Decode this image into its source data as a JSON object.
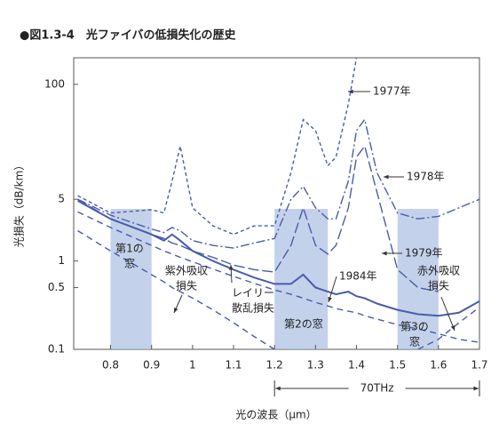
{
  "chart_data": {
    "type": "line",
    "title": "●図1.3-4　光ファイバの低損失化の歴史",
    "x_label": "光の波長（μm）",
    "y_label": "光損失（dB/km）",
    "y_log": true,
    "xlim": [
      0.71,
      1.7
    ],
    "ylim": [
      0.1,
      200
    ],
    "xticks": [
      0.8,
      0.9,
      1.0,
      1.1,
      1.2,
      1.3,
      1.4,
      1.5,
      1.6,
      1.7
    ],
    "yticks": [
      0.1,
      0.5,
      1,
      5,
      100
    ],
    "x": [
      0.72,
      0.8,
      0.9,
      0.93,
      0.95,
      0.97,
      1.0,
      1.05,
      1.1,
      1.15,
      1.2,
      1.24,
      1.27,
      1.3,
      1.33,
      1.35,
      1.38,
      1.4,
      1.42,
      1.45,
      1.5,
      1.55,
      1.6,
      1.65,
      1.7
    ],
    "series": [
      {
        "name": "1977年",
        "color": "#4a5cab",
        "dash": "4 3",
        "values": [
          5.5,
          3.5,
          3.8,
          3.5,
          8,
          20,
          4,
          2.5,
          2.0,
          2.5,
          2.5,
          10,
          40,
          30,
          12,
          15,
          60,
          200,
          null,
          null,
          null,
          null,
          null,
          null,
          null
        ]
      },
      {
        "name": "1978年",
        "color": "#4a5cab",
        "dash": "10 3 2 3",
        "values": [
          5,
          3.3,
          2.3,
          2.1,
          2.4,
          2.2,
          1.7,
          1.5,
          1.4,
          1.6,
          1.8,
          5,
          7,
          4,
          3,
          3,
          8,
          30,
          40,
          10,
          3.5,
          3,
          3.2,
          4,
          5
        ]
      },
      {
        "name": "1979年",
        "color": "#4a5cab",
        "dash": "12 4",
        "values": [
          5,
          3,
          2,
          1.8,
          1.6,
          1.5,
          1.3,
          1.1,
          0.9,
          0.8,
          0.75,
          1.5,
          4,
          1.5,
          1.2,
          1.5,
          4,
          15,
          20,
          6,
          0.8,
          0.5,
          0.45,
          null,
          null
        ]
      },
      {
        "name": "1984年",
        "color": "#4a5cab",
        "dash": "none",
        "values": [
          4.8,
          3,
          2,
          1.7,
          2,
          1.7,
          1.3,
          1.0,
          0.8,
          0.65,
          0.55,
          0.55,
          0.7,
          0.5,
          0.45,
          0.42,
          0.45,
          0.4,
          0.38,
          0.33,
          0.28,
          0.25,
          0.24,
          0.26,
          0.35
        ]
      },
      {
        "name": "レイリー散乱損失",
        "color": "#4a5cab",
        "dash": "7 5",
        "values": [
          3.6,
          2.4,
          1.5,
          1.3,
          1.2,
          1.1,
          0.98,
          0.81,
          0.67,
          0.56,
          0.47,
          0.42,
          0.38,
          0.34,
          0.31,
          0.29,
          0.27,
          0.26,
          0.24,
          0.22,
          0.19,
          0.17,
          0.15,
          0.13,
          0.12
        ]
      },
      {
        "name": "紫外吸収損失",
        "color": "#4a5cab",
        "dash": "7 5",
        "values": [
          2.2,
          1.3,
          0.7,
          0.58,
          0.5,
          0.45,
          0.38,
          0.28,
          0.2,
          0.14,
          0.1,
          null,
          null,
          null,
          null,
          null,
          null,
          null,
          null,
          null,
          null,
          null,
          null,
          null,
          null
        ]
      },
      {
        "name": "赤外吸収損失",
        "color": "#4a5cab",
        "dash": "7 5",
        "values": [
          null,
          null,
          null,
          null,
          null,
          null,
          null,
          null,
          null,
          null,
          null,
          null,
          null,
          null,
          null,
          null,
          null,
          null,
          null,
          null,
          null,
          0.1,
          0.13,
          0.2,
          0.3
        ]
      }
    ],
    "windows": [
      {
        "lines": [
          "第1の",
          "窓"
        ],
        "range": [
          0.8,
          0.9
        ]
      },
      {
        "lines": [
          "第2の窓"
        ],
        "range": [
          1.2,
          1.33
        ]
      },
      {
        "lines": [
          "第3の",
          "窓"
        ],
        "range": [
          1.5,
          1.6
        ]
      }
    ],
    "annotations": [
      {
        "lines": [
          "紫外吸収",
          "損失"
        ]
      },
      {
        "lines": [
          "レイリー",
          "散乱損失"
        ]
      },
      {
        "lines": [
          "赤外吸収",
          "損失"
        ]
      }
    ],
    "span": {
      "label": "70THz",
      "range": [
        1.2,
        1.7
      ]
    }
  }
}
